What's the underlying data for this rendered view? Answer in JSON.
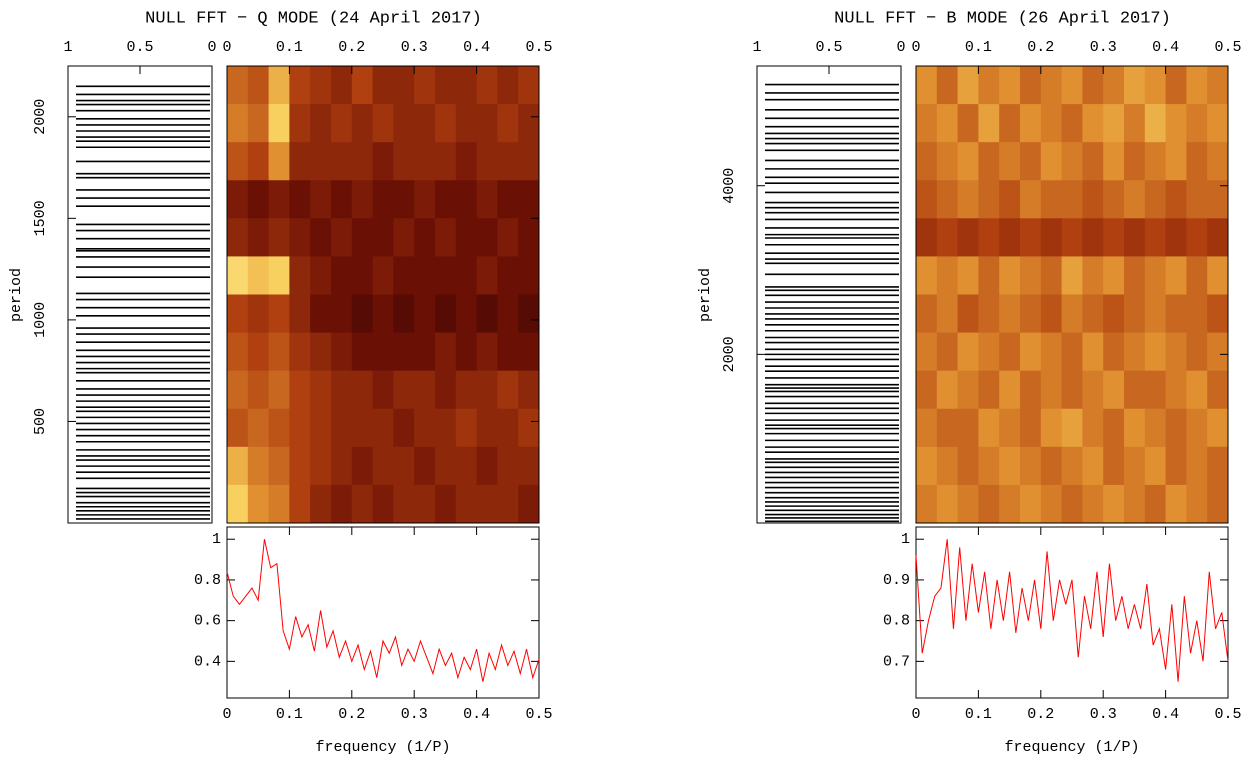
{
  "chart_data": [
    {
      "type": "null_fft",
      "title": "NULL FFT − Q MODE (24 April 2017)",
      "xlabel": "frequency (1/P)",
      "ylabel": "period",
      "xlim": [
        0,
        0.5
      ],
      "xticks": [
        0,
        0.1,
        0.2,
        0.3,
        0.4,
        0.5
      ],
      "ylim": [
        0,
        2250
      ],
      "yticks": [
        500,
        1000,
        1500,
        2000
      ],
      "null_xlim": [
        1,
        0
      ],
      "null_xticks": [
        1,
        0.5,
        0
      ],
      "null_color": "#000000",
      "nulls": [
        2150,
        2110,
        2080,
        2060,
        2030,
        1990,
        1960,
        1930,
        1900,
        1880,
        1850,
        1780,
        1720,
        1700,
        1640,
        1600,
        1560,
        1470,
        1440,
        1400,
        1350,
        1340,
        1310,
        1260,
        1210,
        1130,
        1100,
        1060,
        1020,
        960,
        930,
        890,
        850,
        820,
        790,
        760,
        740,
        700,
        660,
        630,
        600,
        570,
        550,
        520,
        490,
        460,
        430,
        400,
        360,
        330,
        310,
        280,
        250,
        220,
        170,
        150,
        130,
        100,
        80,
        60,
        40,
        20
      ],
      "colormap": [
        "#1a0000",
        "#6a1005",
        "#b04010",
        "#e09030",
        "#f8d060",
        "#fff0a0"
      ],
      "heatmap": [
        [
          0.5,
          0.45,
          0.7,
          0.4,
          0.35,
          0.3,
          0.4,
          0.3,
          0.3,
          0.35,
          0.3,
          0.3,
          0.35,
          0.3,
          0.35
        ],
        [
          0.55,
          0.5,
          0.8,
          0.35,
          0.3,
          0.35,
          0.3,
          0.35,
          0.3,
          0.3,
          0.35,
          0.3,
          0.3,
          0.35,
          0.3
        ],
        [
          0.45,
          0.4,
          0.6,
          0.3,
          0.3,
          0.3,
          0.3,
          0.25,
          0.3,
          0.3,
          0.3,
          0.25,
          0.3,
          0.3,
          0.3
        ],
        [
          0.25,
          0.2,
          0.25,
          0.2,
          0.25,
          0.2,
          0.25,
          0.2,
          0.2,
          0.25,
          0.2,
          0.2,
          0.25,
          0.2,
          0.2
        ],
        [
          0.3,
          0.25,
          0.3,
          0.25,
          0.2,
          0.25,
          0.2,
          0.2,
          0.25,
          0.2,
          0.25,
          0.2,
          0.2,
          0.25,
          0.2
        ],
        [
          0.85,
          0.75,
          0.8,
          0.3,
          0.25,
          0.2,
          0.2,
          0.25,
          0.2,
          0.2,
          0.2,
          0.2,
          0.25,
          0.2,
          0.2
        ],
        [
          0.4,
          0.35,
          0.4,
          0.3,
          0.2,
          0.2,
          0.15,
          0.2,
          0.15,
          0.2,
          0.15,
          0.2,
          0.15,
          0.2,
          0.15
        ],
        [
          0.45,
          0.4,
          0.45,
          0.35,
          0.3,
          0.25,
          0.2,
          0.2,
          0.2,
          0.2,
          0.25,
          0.2,
          0.25,
          0.2,
          0.2
        ],
        [
          0.5,
          0.45,
          0.5,
          0.4,
          0.35,
          0.3,
          0.3,
          0.25,
          0.3,
          0.3,
          0.25,
          0.3,
          0.3,
          0.35,
          0.3
        ],
        [
          0.45,
          0.5,
          0.45,
          0.4,
          0.35,
          0.3,
          0.3,
          0.3,
          0.25,
          0.3,
          0.3,
          0.35,
          0.3,
          0.3,
          0.35
        ],
        [
          0.7,
          0.55,
          0.5,
          0.4,
          0.35,
          0.3,
          0.25,
          0.3,
          0.3,
          0.25,
          0.3,
          0.3,
          0.25,
          0.3,
          0.3
        ],
        [
          0.8,
          0.6,
          0.55,
          0.4,
          0.3,
          0.25,
          0.3,
          0.25,
          0.3,
          0.3,
          0.25,
          0.3,
          0.3,
          0.3,
          0.25
        ]
      ],
      "spectrum": {
        "color": "#ff0000",
        "ylim": [
          0.22,
          1.06
        ],
        "yticks": [
          0.4,
          0.6,
          0.8,
          1
        ],
        "x": [
          0,
          0.01,
          0.02,
          0.03,
          0.04,
          0.05,
          0.06,
          0.07,
          0.08,
          0.09,
          0.1,
          0.11,
          0.12,
          0.13,
          0.14,
          0.15,
          0.16,
          0.17,
          0.18,
          0.19,
          0.2,
          0.21,
          0.22,
          0.23,
          0.24,
          0.25,
          0.26,
          0.27,
          0.28,
          0.29,
          0.3,
          0.31,
          0.32,
          0.33,
          0.34,
          0.35,
          0.36,
          0.37,
          0.38,
          0.39,
          0.4,
          0.41,
          0.42,
          0.43,
          0.44,
          0.45,
          0.46,
          0.47,
          0.48,
          0.49,
          0.5
        ],
        "values": [
          0.84,
          0.72,
          0.68,
          0.72,
          0.76,
          0.7,
          1.0,
          0.86,
          0.88,
          0.55,
          0.46,
          0.62,
          0.52,
          0.58,
          0.45,
          0.65,
          0.47,
          0.55,
          0.42,
          0.5,
          0.4,
          0.48,
          0.36,
          0.45,
          0.32,
          0.5,
          0.44,
          0.52,
          0.38,
          0.46,
          0.4,
          0.5,
          0.42,
          0.34,
          0.46,
          0.38,
          0.44,
          0.32,
          0.42,
          0.36,
          0.46,
          0.3,
          0.44,
          0.36,
          0.48,
          0.38,
          0.45,
          0.34,
          0.46,
          0.32,
          0.41
        ]
      }
    },
    {
      "type": "null_fft",
      "title": "NULL FFT − B MODE (26 April 2017)",
      "xlabel": "frequency (1/P)",
      "ylabel": "period",
      "xlim": [
        0,
        0.5
      ],
      "xticks": [
        0,
        0.1,
        0.2,
        0.3,
        0.4,
        0.5
      ],
      "ylim": [
        0,
        5420
      ],
      "yticks": [
        2000,
        4000
      ],
      "null_xlim": [
        1,
        0
      ],
      "null_xticks": [
        1,
        0.5,
        0
      ],
      "null_color": "#000000",
      "nulls": [
        5200,
        5100,
        5020,
        4900,
        4800,
        4700,
        4620,
        4560,
        4500,
        4420,
        4300,
        4200,
        4100,
        4030,
        3920,
        3800,
        3740,
        3680,
        3600,
        3500,
        3420,
        3380,
        3300,
        3200,
        3130,
        3080,
        2950,
        2800,
        2760,
        2700,
        2620,
        2550,
        2480,
        2420,
        2350,
        2280,
        2200,
        2140,
        2060,
        2000,
        1940,
        1860,
        1800,
        1720,
        1640,
        1600,
        1560,
        1500,
        1420,
        1360,
        1300,
        1220,
        1160,
        1120,
        1060,
        980,
        900,
        840,
        760,
        720,
        660,
        600,
        540,
        480,
        420,
        360,
        300,
        250,
        200,
        150,
        100,
        60,
        20
      ],
      "colormap": [
        "#1a0000",
        "#6a1005",
        "#b04010",
        "#e09030",
        "#f8d060",
        "#fff0a0"
      ],
      "heatmap": [
        [
          0.6,
          0.5,
          0.65,
          0.55,
          0.6,
          0.5,
          0.55,
          0.6,
          0.5,
          0.55,
          0.65,
          0.6,
          0.5,
          0.6,
          0.55
        ],
        [
          0.55,
          0.6,
          0.5,
          0.65,
          0.5,
          0.6,
          0.55,
          0.5,
          0.6,
          0.65,
          0.55,
          0.7,
          0.6,
          0.55,
          0.6
        ],
        [
          0.5,
          0.55,
          0.6,
          0.5,
          0.55,
          0.5,
          0.6,
          0.55,
          0.5,
          0.6,
          0.5,
          0.55,
          0.6,
          0.5,
          0.55
        ],
        [
          0.45,
          0.5,
          0.55,
          0.5,
          0.45,
          0.55,
          0.5,
          0.5,
          0.45,
          0.5,
          0.55,
          0.5,
          0.45,
          0.5,
          0.5
        ],
        [
          0.35,
          0.4,
          0.35,
          0.4,
          0.35,
          0.4,
          0.35,
          0.4,
          0.35,
          0.4,
          0.35,
          0.4,
          0.35,
          0.4,
          0.35
        ],
        [
          0.6,
          0.55,
          0.6,
          0.5,
          0.6,
          0.55,
          0.5,
          0.65,
          0.55,
          0.6,
          0.5,
          0.55,
          0.6,
          0.5,
          0.6
        ],
        [
          0.5,
          0.55,
          0.45,
          0.5,
          0.55,
          0.5,
          0.45,
          0.55,
          0.5,
          0.45,
          0.5,
          0.55,
          0.5,
          0.5,
          0.45
        ],
        [
          0.55,
          0.5,
          0.6,
          0.55,
          0.5,
          0.6,
          0.55,
          0.5,
          0.6,
          0.5,
          0.55,
          0.6,
          0.55,
          0.5,
          0.55
        ],
        [
          0.5,
          0.6,
          0.55,
          0.5,
          0.6,
          0.5,
          0.55,
          0.5,
          0.55,
          0.6,
          0.5,
          0.5,
          0.55,
          0.6,
          0.5
        ],
        [
          0.55,
          0.5,
          0.5,
          0.6,
          0.55,
          0.5,
          0.6,
          0.65,
          0.55,
          0.5,
          0.6,
          0.55,
          0.5,
          0.55,
          0.6
        ],
        [
          0.6,
          0.55,
          0.5,
          0.55,
          0.6,
          0.55,
          0.5,
          0.55,
          0.6,
          0.5,
          0.55,
          0.6,
          0.5,
          0.55,
          0.5
        ],
        [
          0.55,
          0.6,
          0.55,
          0.5,
          0.55,
          0.6,
          0.55,
          0.5,
          0.55,
          0.6,
          0.55,
          0.5,
          0.6,
          0.55,
          0.5
        ]
      ],
      "spectrum": {
        "color": "#ff0000",
        "ylim": [
          0.61,
          1.03
        ],
        "yticks": [
          0.7,
          0.8,
          0.9,
          1
        ],
        "x": [
          0,
          0.01,
          0.02,
          0.03,
          0.04,
          0.05,
          0.06,
          0.07,
          0.08,
          0.09,
          0.1,
          0.11,
          0.12,
          0.13,
          0.14,
          0.15,
          0.16,
          0.17,
          0.18,
          0.19,
          0.2,
          0.21,
          0.22,
          0.23,
          0.24,
          0.25,
          0.26,
          0.27,
          0.28,
          0.29,
          0.3,
          0.31,
          0.32,
          0.33,
          0.34,
          0.35,
          0.36,
          0.37,
          0.38,
          0.39,
          0.4,
          0.41,
          0.42,
          0.43,
          0.44,
          0.45,
          0.46,
          0.47,
          0.48,
          0.49,
          0.5
        ],
        "values": [
          0.96,
          0.72,
          0.8,
          0.86,
          0.88,
          1.0,
          0.78,
          0.98,
          0.8,
          0.94,
          0.82,
          0.92,
          0.78,
          0.9,
          0.8,
          0.92,
          0.77,
          0.88,
          0.8,
          0.9,
          0.78,
          0.97,
          0.8,
          0.9,
          0.84,
          0.9,
          0.71,
          0.86,
          0.78,
          0.92,
          0.76,
          0.94,
          0.8,
          0.86,
          0.78,
          0.84,
          0.78,
          0.89,
          0.74,
          0.78,
          0.68,
          0.84,
          0.65,
          0.86,
          0.72,
          0.8,
          0.7,
          0.92,
          0.78,
          0.82,
          0.7
        ]
      }
    }
  ]
}
